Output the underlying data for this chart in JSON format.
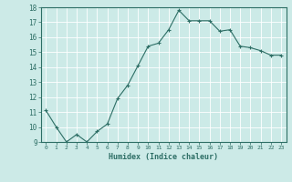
{
  "xlabel": "Humidex (Indice chaleur)",
  "x": [
    0,
    1,
    2,
    3,
    4,
    5,
    6,
    7,
    8,
    9,
    10,
    11,
    12,
    13,
    14,
    15,
    16,
    17,
    18,
    19,
    20,
    21,
    22,
    23
  ],
  "y": [
    11.1,
    10.0,
    9.0,
    9.5,
    9.0,
    9.7,
    10.2,
    11.9,
    12.8,
    14.1,
    15.4,
    15.6,
    16.5,
    17.8,
    17.1,
    17.1,
    17.1,
    16.4,
    16.5,
    15.4,
    15.3,
    15.1,
    14.8,
    14.8
  ],
  "line_color": "#2d6e65",
  "marker": "+",
  "marker_size": 3,
  "bg_color": "#cceae7",
  "grid_color": "#ffffff",
  "tick_color": "#2d6e65",
  "label_color": "#2d6e65",
  "ylim": [
    9,
    18
  ],
  "xlim": [
    -0.5,
    23.5
  ],
  "yticks": [
    9,
    10,
    11,
    12,
    13,
    14,
    15,
    16,
    17,
    18
  ],
  "xticks": [
    0,
    1,
    2,
    3,
    4,
    5,
    6,
    7,
    8,
    9,
    10,
    11,
    12,
    13,
    14,
    15,
    16,
    17,
    18,
    19,
    20,
    21,
    22,
    23
  ]
}
